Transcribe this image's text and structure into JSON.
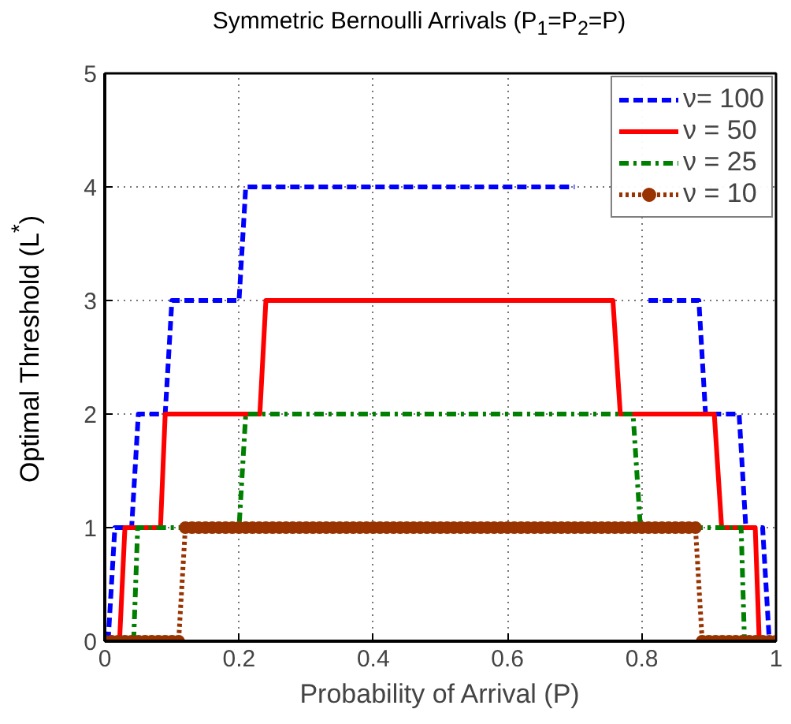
{
  "chart_data": {
    "type": "line",
    "title": "Symmetric Bernoulli Arrivals (P$_{1}$=P$_{2}$=P)",
    "xlabel": "Probability of Arrival (P)",
    "ylabel": "Optimal Threshold (L$^{*}$)",
    "xlim": [
      0,
      1
    ],
    "ylim": [
      0,
      5
    ],
    "xticks": [
      0,
      0.2,
      0.4,
      0.6,
      0.8,
      1
    ],
    "yticks": [
      0,
      1,
      2,
      3,
      4,
      5
    ],
    "grid": true,
    "legend": "top right",
    "series": [
      {
        "name": "ν= 100",
        "color": "#0000ff",
        "line_style": "dashed",
        "x": [
          0.005,
          0.015,
          0.04,
          0.05,
          0.09,
          0.1,
          0.2,
          0.21,
          0.7,
          0.8,
          0.81,
          0.885,
          0.895,
          0.945,
          0.955,
          0.98,
          0.99
        ],
        "values": [
          0,
          1,
          1,
          2,
          2,
          3,
          3,
          4,
          4,
          null,
          3,
          3,
          2,
          2,
          1,
          1,
          0
        ]
      },
      {
        "name": "ν = 50",
        "color": "#ff0000",
        "line_style": "solid",
        "x": [
          0.022,
          0.03,
          0.083,
          0.09,
          0.231,
          0.24,
          0.757,
          0.768,
          0.908,
          0.919,
          0.969,
          0.975
        ],
        "values": [
          0,
          1,
          1,
          2,
          2,
          3,
          3,
          2,
          2,
          1,
          1,
          0
        ]
      },
      {
        "name": "ν = 25",
        "color": "#008000",
        "line_style": "dashdot",
        "x": [
          0.043,
          0.049,
          0.2,
          0.21,
          0.787,
          0.798,
          0.948,
          0.953
        ],
        "values": [
          0,
          1,
          1,
          2,
          2,
          1,
          1,
          0
        ]
      },
      {
        "name": "ν = 10",
        "color": "#993300",
        "line_style": "dotted",
        "marker": "circle",
        "x": [
          0,
          0.01,
          0.02,
          0.03,
          0.04,
          0.05,
          0.06,
          0.07,
          0.08,
          0.09,
          0.1,
          0.11,
          0.12,
          0.13,
          0.14,
          0.15,
          0.16,
          0.17,
          0.18,
          0.19,
          0.2,
          0.21,
          0.22,
          0.23,
          0.24,
          0.25,
          0.26,
          0.27,
          0.28,
          0.29,
          0.3,
          0.31,
          0.32,
          0.33,
          0.34,
          0.35,
          0.36,
          0.37,
          0.38,
          0.39,
          0.4,
          0.41,
          0.42,
          0.43,
          0.44,
          0.45,
          0.46,
          0.47,
          0.48,
          0.49,
          0.5,
          0.51,
          0.52,
          0.53,
          0.54,
          0.55,
          0.56,
          0.57,
          0.58,
          0.59,
          0.6,
          0.61,
          0.62,
          0.63,
          0.64,
          0.65,
          0.66,
          0.67,
          0.68,
          0.69,
          0.7,
          0.71,
          0.72,
          0.73,
          0.74,
          0.75,
          0.76,
          0.77,
          0.78,
          0.79,
          0.8,
          0.81,
          0.82,
          0.83,
          0.84,
          0.85,
          0.86,
          0.87,
          0.88,
          0.89,
          0.9,
          0.91,
          0.92,
          0.93,
          0.94,
          0.95,
          0.96,
          0.97,
          0.98,
          0.99,
          1
        ],
        "values": [
          0,
          0,
          0,
          0,
          0,
          0,
          0,
          0,
          0,
          0,
          0,
          0,
          1,
          1,
          1,
          1,
          1,
          1,
          1,
          1,
          1,
          1,
          1,
          1,
          1,
          1,
          1,
          1,
          1,
          1,
          1,
          1,
          1,
          1,
          1,
          1,
          1,
          1,
          1,
          1,
          1,
          1,
          1,
          1,
          1,
          1,
          1,
          1,
          1,
          1,
          1,
          1,
          1,
          1,
          1,
          1,
          1,
          1,
          1,
          1,
          1,
          1,
          1,
          1,
          1,
          1,
          1,
          1,
          1,
          1,
          1,
          1,
          1,
          1,
          1,
          1,
          1,
          1,
          1,
          1,
          1,
          1,
          1,
          1,
          1,
          1,
          1,
          1,
          1,
          0,
          0,
          0,
          0,
          0,
          0,
          0,
          0,
          0,
          0,
          0,
          0
        ]
      }
    ]
  }
}
